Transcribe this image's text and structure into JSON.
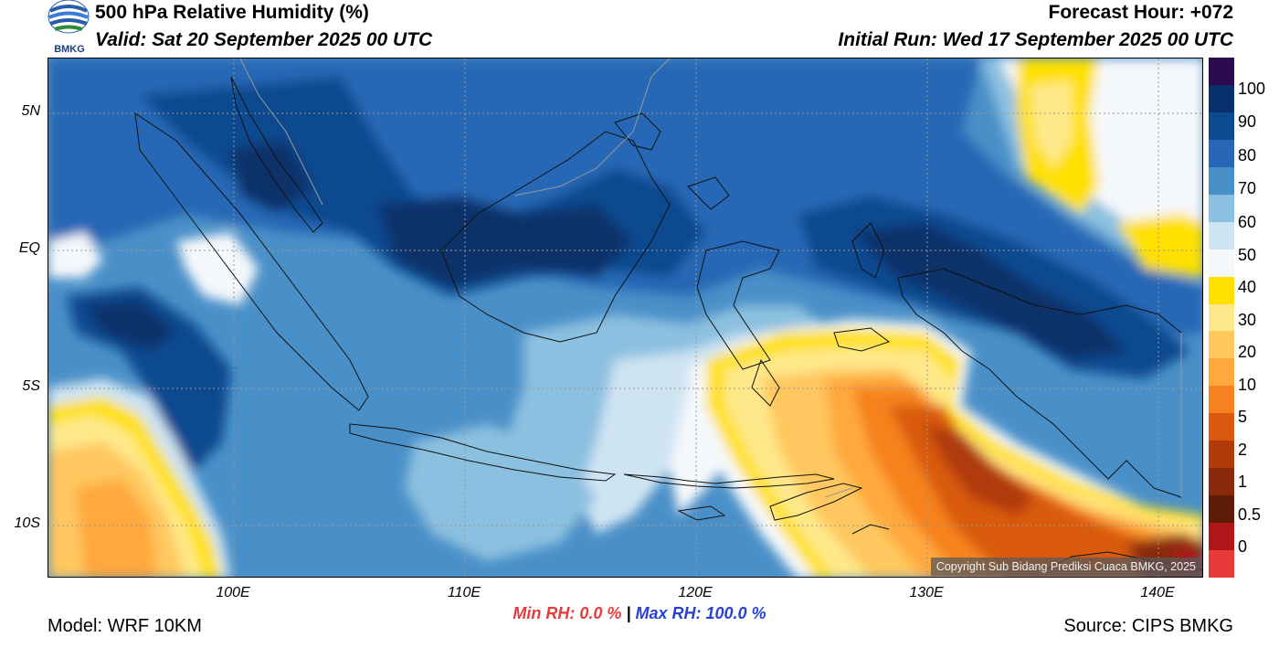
{
  "header": {
    "title": "500 hPa Relative Humidity (%)",
    "valid": "Valid: Sat 20 September 2025 00 UTC",
    "forecast_hour": "Forecast Hour: +072",
    "initial_run": "Initial Run: Wed 17 September 2025 00 UTC"
  },
  "logo": {
    "icon": "bmkg-logo-icon",
    "text": "BMKG"
  },
  "map": {
    "lat_labels": [
      "5N",
      "EQ",
      "5S",
      "10S"
    ],
    "lon_labels": [
      "100E",
      "110E",
      "120E",
      "130E",
      "140E"
    ],
    "copyright": "Copyright Sub Bidang Prediksi Cuaca BMKG, 2025"
  },
  "colorbar": {
    "labels": [
      "100",
      "90",
      "80",
      "70",
      "60",
      "50",
      "40",
      "30",
      "20",
      "10",
      "5",
      "2",
      "1",
      "0.5",
      "0"
    ],
    "colors": [
      "#2c0a4e",
      "#08306b",
      "#0c4a8f",
      "#2767b5",
      "#4a90c8",
      "#8cc0e0",
      "#cfe4f2",
      "#f5f8fb",
      "#ffe000",
      "#ffe88a",
      "#ffc75e",
      "#ffa83c",
      "#f5821f",
      "#d95a0e",
      "#b03a08",
      "#8a2a0a",
      "#5e1b08",
      "#b0151a",
      "#e8393b"
    ]
  },
  "stats": {
    "min_rh": "Min RH:   0.0 %",
    "separator": "|",
    "max_rh": "Max RH: 100.0 %"
  },
  "footer": {
    "model": "Model: WRF 10KM",
    "source": "Source: CIPS BMKG"
  }
}
